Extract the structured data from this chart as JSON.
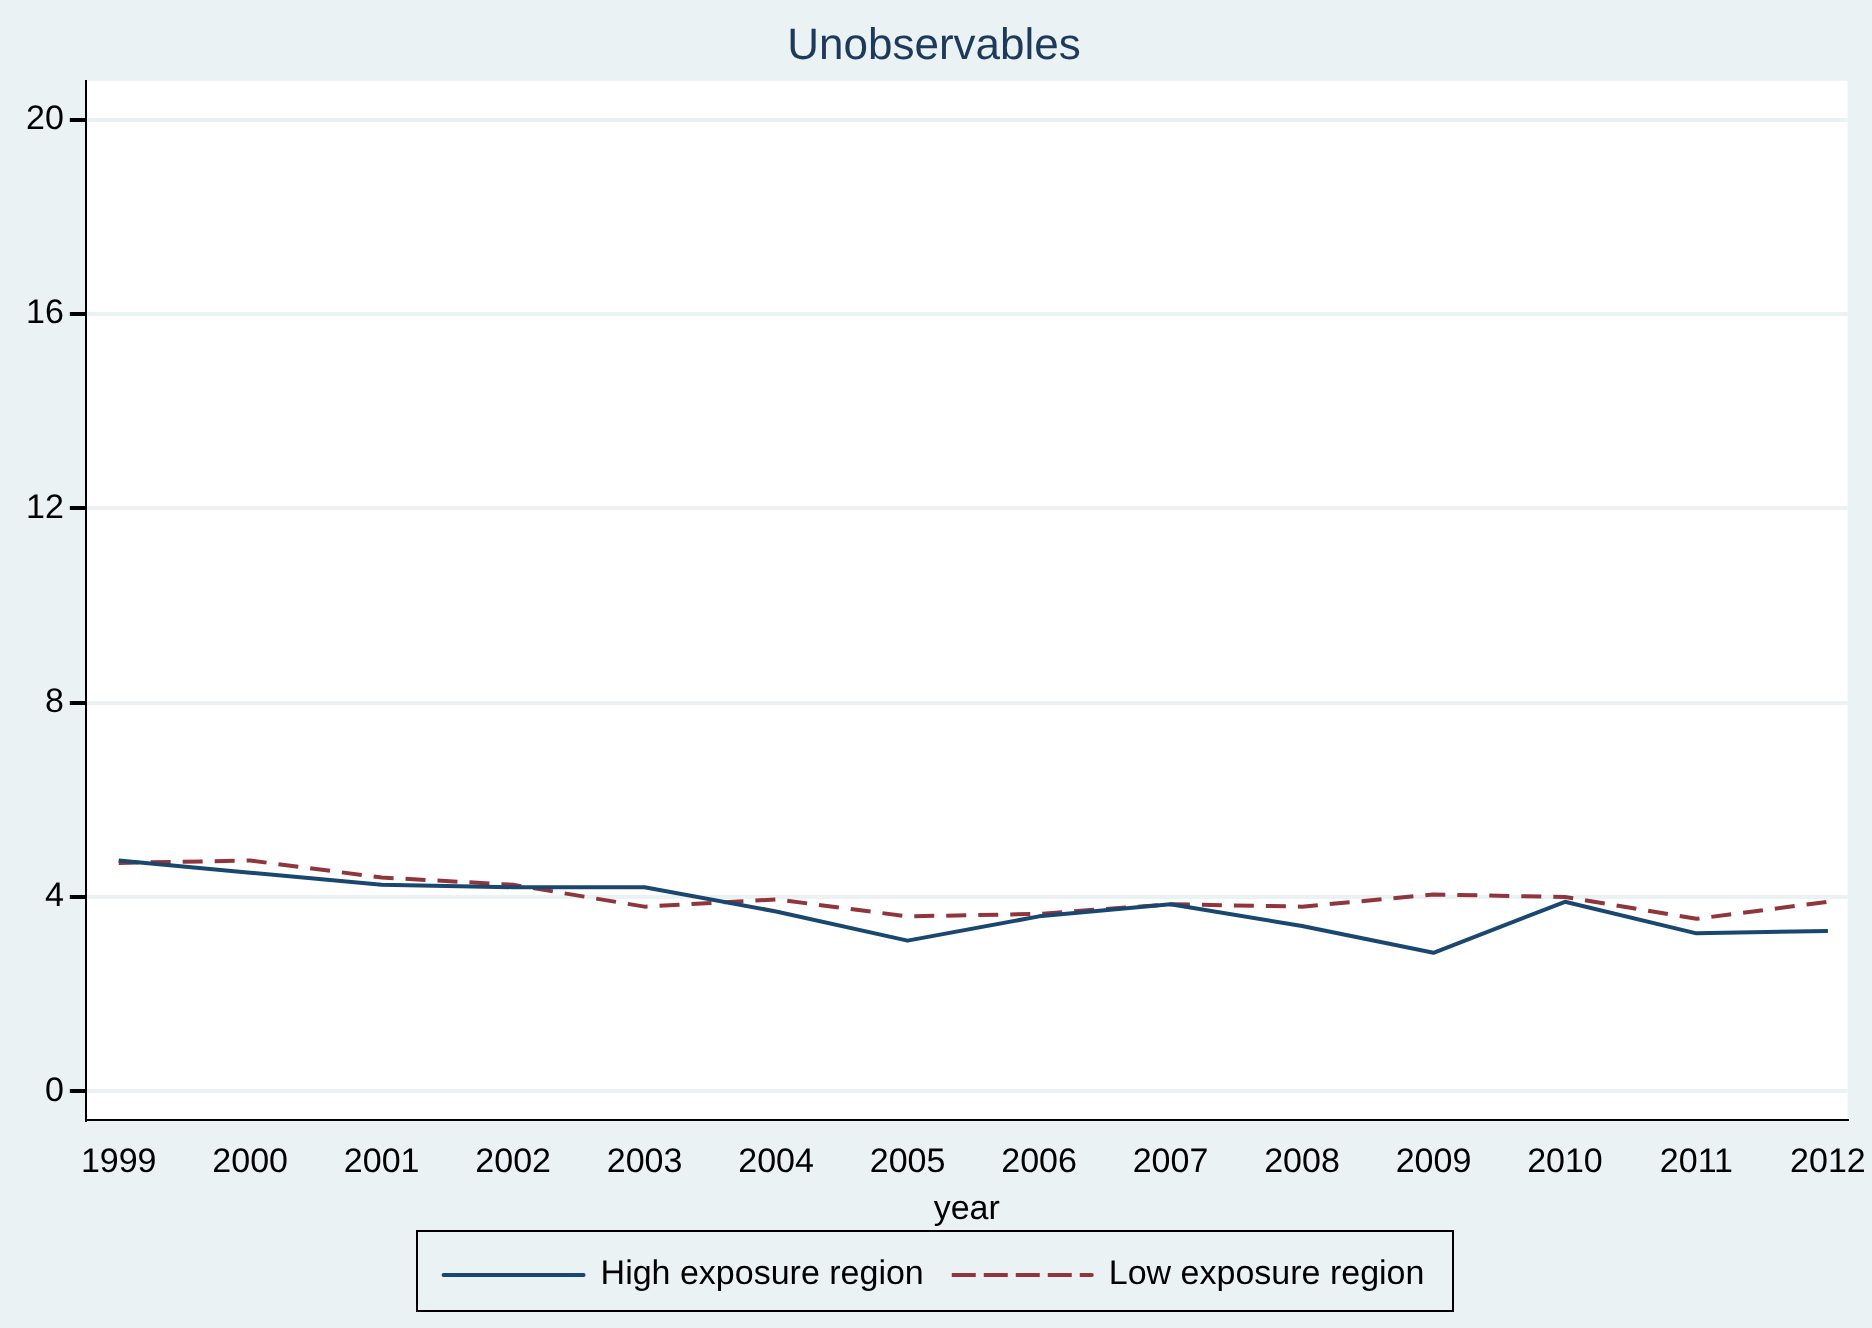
{
  "chart_data": {
    "type": "line",
    "title": "Unobservables",
    "xlabel": "year",
    "x": [
      1999,
      2000,
      2001,
      2002,
      2003,
      2004,
      2005,
      2006,
      2007,
      2008,
      2009,
      2010,
      2011,
      2012
    ],
    "series": [
      {
        "name": "High exposure region",
        "color": "#1a476f",
        "line_style": "solid",
        "values": [
          4.75,
          4.5,
          4.25,
          4.2,
          4.2,
          3.7,
          3.1,
          3.6,
          3.85,
          3.4,
          2.85,
          3.9,
          3.25,
          3.3
        ]
      },
      {
        "name": "Low exposure region",
        "color": "#90353b",
        "line_style": "dashed",
        "values": [
          4.7,
          4.75,
          4.4,
          4.25,
          3.8,
          3.95,
          3.6,
          3.65,
          3.85,
          3.8,
          4.05,
          4.0,
          3.55,
          3.9
        ]
      }
    ],
    "xlim": [
      1998.75,
      2012.15
    ],
    "xticks": [
      1999,
      2000,
      2001,
      2002,
      2003,
      2004,
      2005,
      2006,
      2007,
      2008,
      2009,
      2010,
      2011,
      2012
    ],
    "ylim": [
      -0.6,
      20.8
    ],
    "yticks": [
      0,
      4,
      8,
      12,
      16,
      20
    ],
    "grid": "y",
    "legend": "bottom",
    "marker": "none"
  }
}
